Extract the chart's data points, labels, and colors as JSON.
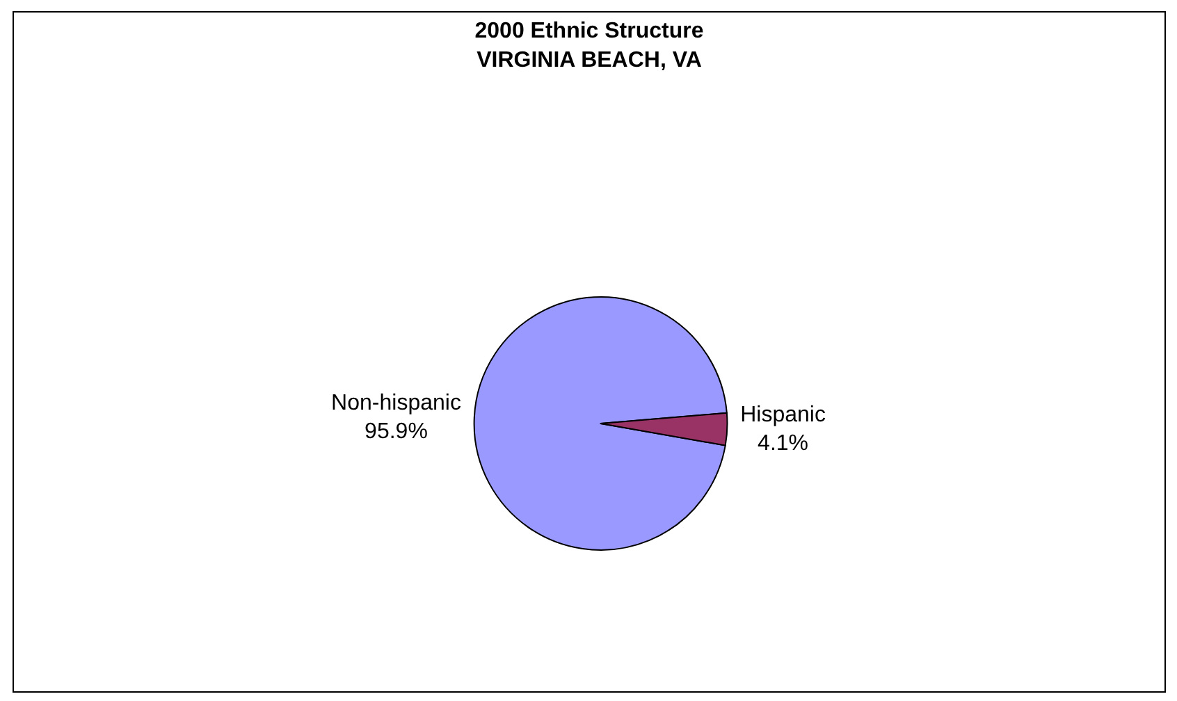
{
  "chart_data": {
    "type": "pie",
    "title": "2000 Ethnic Structure",
    "subtitle": "VIRGINIA BEACH, VA",
    "categories": [
      "Non-hispanic",
      "Hispanic"
    ],
    "values": [
      95.9,
      4.1
    ],
    "value_labels": [
      "95.9%",
      "4.1%"
    ],
    "colors": [
      "#9999ff",
      "#993366"
    ],
    "legend": false
  }
}
